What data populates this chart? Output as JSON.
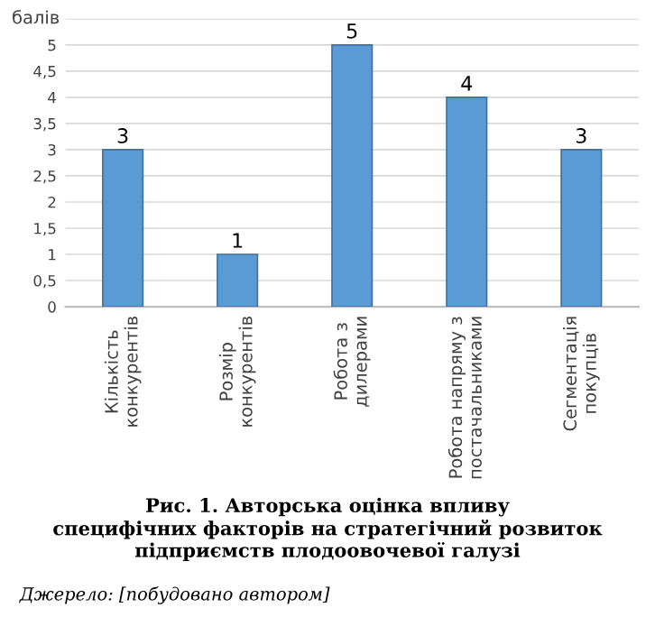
{
  "chart_data": {
    "type": "bar",
    "title": "Рис. 1. Авторська оцінка впливу\nспецифічних факторів на стратегічний розвиток\nпідприємств плодоовочевої галузі",
    "ylabel": "балів",
    "categories": [
      "Кількість\nконкурентів",
      "Розмір\nконкурентів",
      "Робота з\nдилерами",
      "Робота напряму з\nпостачальниками",
      "Сегментація\nпокупців"
    ],
    "values": [
      3,
      1,
      5,
      4,
      3
    ],
    "color": "#5b9bd5",
    "data_labels": true,
    "grid": "y",
    "ylim": [
      0,
      5.5
    ],
    "yticks": [
      0,
      {
        "value": 0.5,
        "label": "0,5"
      },
      1,
      {
        "value": 1.5,
        "label": "1,5"
      },
      2,
      {
        "value": 2.5,
        "label": "2,5"
      },
      3,
      {
        "value": 3.5,
        "label": "3,5"
      },
      4,
      {
        "value": 4.5,
        "label": "4,5"
      },
      5,
      {
        "value": 5.5,
        "label": null
      }
    ],
    "annotations": [
      "Джерело: [побудовано автором]"
    ]
  }
}
